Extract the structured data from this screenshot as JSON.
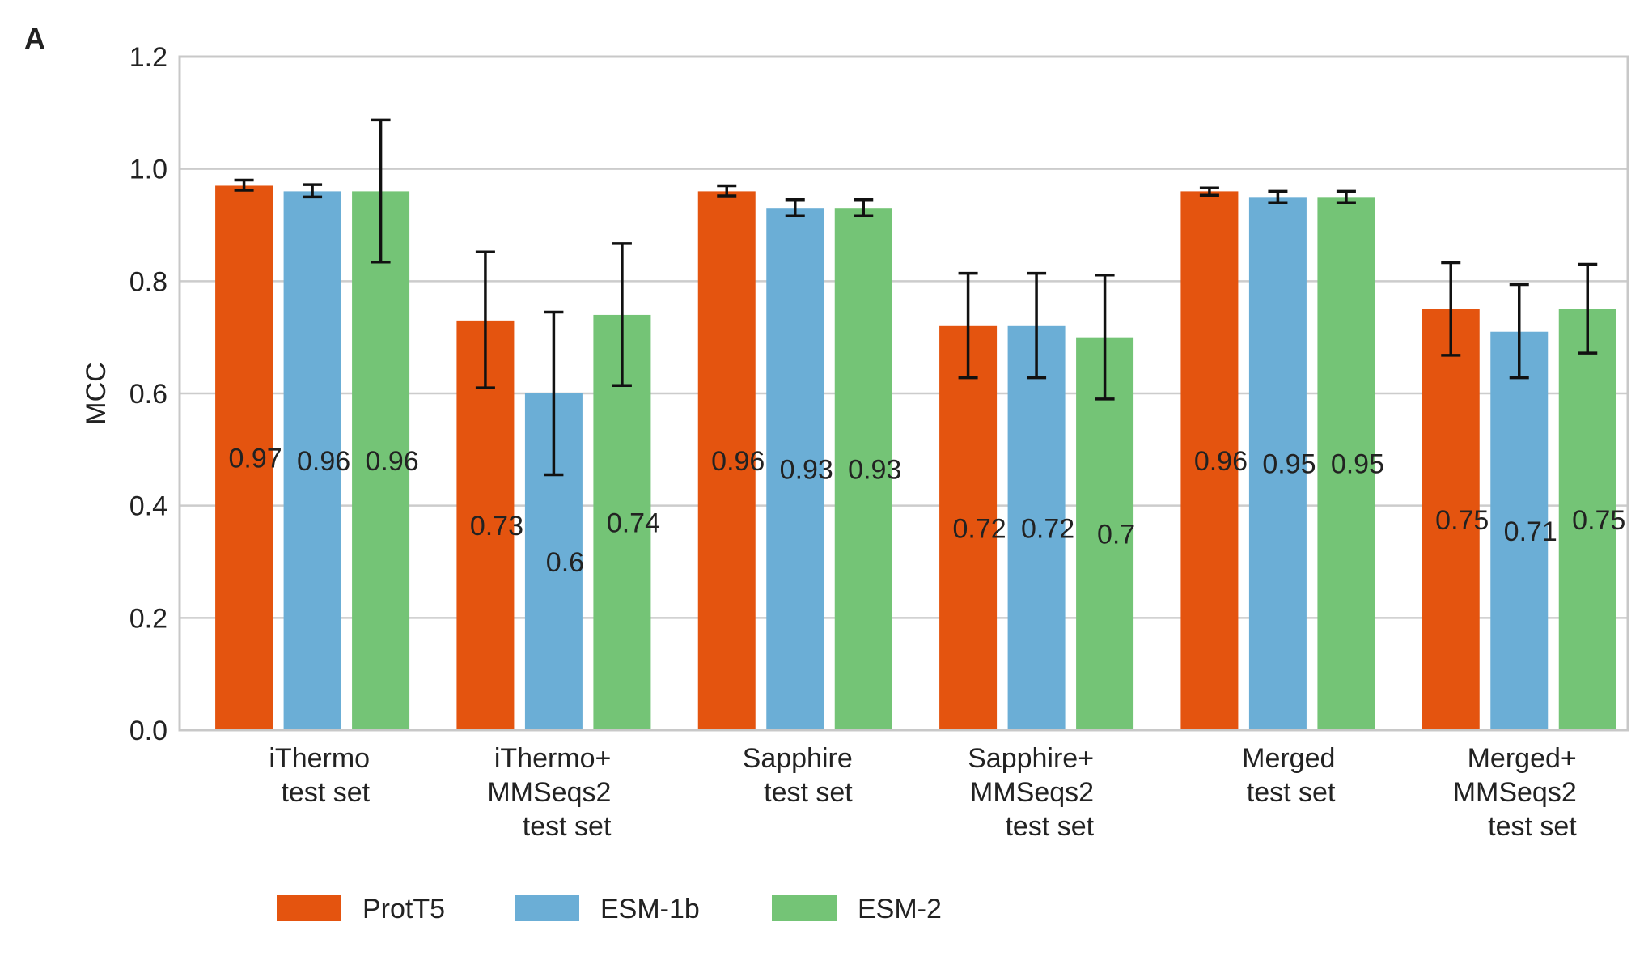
{
  "panel_letter": "A",
  "chart_data": {
    "type": "bar",
    "ylabel": "MCC",
    "ylim": [
      0,
      1.2
    ],
    "yticks": [
      "0.0",
      "0.2",
      "0.4",
      "0.6",
      "0.8",
      "1.0",
      "1.2"
    ],
    "grid": true,
    "legend_position": "bottom",
    "categories": [
      [
        "iThermo",
        "test set"
      ],
      [
        "iThermo+",
        "MMSeqs2",
        "test set"
      ],
      [
        "Sapphire",
        "test set"
      ],
      [
        "Sapphire+",
        "MMSeqs2",
        "test set"
      ],
      [
        "Merged",
        "test set"
      ],
      [
        "Merged+",
        "MMSeqs2",
        "test set"
      ]
    ],
    "series": [
      {
        "name": "ProtT5",
        "color": "#E4540F",
        "values": [
          0.97,
          0.73,
          0.96,
          0.72,
          0.96,
          0.75
        ],
        "labels": [
          "0.97",
          "0.73",
          "0.96",
          "0.72",
          "0.96",
          "0.75"
        ],
        "error_low": [
          0.962,
          0.61,
          0.952,
          0.628,
          0.953,
          0.668
        ],
        "error_high": [
          0.98,
          0.852,
          0.97,
          0.814,
          0.966,
          0.833
        ]
      },
      {
        "name": "ESM-1b",
        "color": "#6BAED6",
        "values": [
          0.96,
          0.6,
          0.93,
          0.72,
          0.95,
          0.71
        ],
        "labels": [
          "0.96",
          "0.6",
          "0.93",
          "0.72",
          "0.95",
          "0.71"
        ],
        "error_low": [
          0.95,
          0.455,
          0.917,
          0.628,
          0.94,
          0.628
        ],
        "error_high": [
          0.972,
          0.745,
          0.945,
          0.814,
          0.96,
          0.794
        ]
      },
      {
        "name": "ESM-2",
        "color": "#74C476",
        "values": [
          0.96,
          0.74,
          0.93,
          0.7,
          0.95,
          0.75
        ],
        "labels": [
          "0.96",
          "0.74",
          "0.93",
          "0.7",
          "0.95",
          "0.75"
        ],
        "error_low": [
          0.834,
          0.614,
          0.917,
          0.59,
          0.94,
          0.672
        ],
        "error_high": [
          1.087,
          0.867,
          0.945,
          0.811,
          0.96,
          0.83
        ]
      }
    ]
  }
}
